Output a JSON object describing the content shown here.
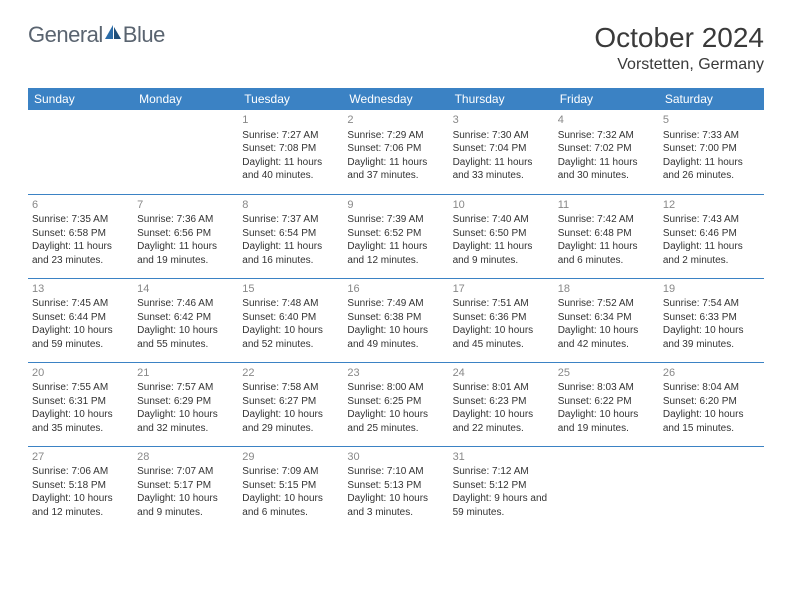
{
  "brand": {
    "part1": "General",
    "part2": "Blue"
  },
  "title": "October 2024",
  "location": "Vorstetten, Germany",
  "colors": {
    "header_bg": "#3b82c4",
    "header_fg": "#ffffff",
    "daynum": "#888888",
    "text": "#333333",
    "logo_gray": "#5a6470",
    "logo_blue": "#2b6ca8"
  },
  "fonts": {
    "title_size": 28,
    "location_size": 16,
    "dayhead_size": 12,
    "cell_size": 10
  },
  "day_headers": [
    "Sunday",
    "Monday",
    "Tuesday",
    "Wednesday",
    "Thursday",
    "Friday",
    "Saturday"
  ],
  "weeks": [
    [
      null,
      null,
      {
        "n": "1",
        "sr": "Sunrise: 7:27 AM",
        "ss": "Sunset: 7:08 PM",
        "dl": "Daylight: 11 hours and 40 minutes."
      },
      {
        "n": "2",
        "sr": "Sunrise: 7:29 AM",
        "ss": "Sunset: 7:06 PM",
        "dl": "Daylight: 11 hours and 37 minutes."
      },
      {
        "n": "3",
        "sr": "Sunrise: 7:30 AM",
        "ss": "Sunset: 7:04 PM",
        "dl": "Daylight: 11 hours and 33 minutes."
      },
      {
        "n": "4",
        "sr": "Sunrise: 7:32 AM",
        "ss": "Sunset: 7:02 PM",
        "dl": "Daylight: 11 hours and 30 minutes."
      },
      {
        "n": "5",
        "sr": "Sunrise: 7:33 AM",
        "ss": "Sunset: 7:00 PM",
        "dl": "Daylight: 11 hours and 26 minutes."
      }
    ],
    [
      {
        "n": "6",
        "sr": "Sunrise: 7:35 AM",
        "ss": "Sunset: 6:58 PM",
        "dl": "Daylight: 11 hours and 23 minutes."
      },
      {
        "n": "7",
        "sr": "Sunrise: 7:36 AM",
        "ss": "Sunset: 6:56 PM",
        "dl": "Daylight: 11 hours and 19 minutes."
      },
      {
        "n": "8",
        "sr": "Sunrise: 7:37 AM",
        "ss": "Sunset: 6:54 PM",
        "dl": "Daylight: 11 hours and 16 minutes."
      },
      {
        "n": "9",
        "sr": "Sunrise: 7:39 AM",
        "ss": "Sunset: 6:52 PM",
        "dl": "Daylight: 11 hours and 12 minutes."
      },
      {
        "n": "10",
        "sr": "Sunrise: 7:40 AM",
        "ss": "Sunset: 6:50 PM",
        "dl": "Daylight: 11 hours and 9 minutes."
      },
      {
        "n": "11",
        "sr": "Sunrise: 7:42 AM",
        "ss": "Sunset: 6:48 PM",
        "dl": "Daylight: 11 hours and 6 minutes."
      },
      {
        "n": "12",
        "sr": "Sunrise: 7:43 AM",
        "ss": "Sunset: 6:46 PM",
        "dl": "Daylight: 11 hours and 2 minutes."
      }
    ],
    [
      {
        "n": "13",
        "sr": "Sunrise: 7:45 AM",
        "ss": "Sunset: 6:44 PM",
        "dl": "Daylight: 10 hours and 59 minutes."
      },
      {
        "n": "14",
        "sr": "Sunrise: 7:46 AM",
        "ss": "Sunset: 6:42 PM",
        "dl": "Daylight: 10 hours and 55 minutes."
      },
      {
        "n": "15",
        "sr": "Sunrise: 7:48 AM",
        "ss": "Sunset: 6:40 PM",
        "dl": "Daylight: 10 hours and 52 minutes."
      },
      {
        "n": "16",
        "sr": "Sunrise: 7:49 AM",
        "ss": "Sunset: 6:38 PM",
        "dl": "Daylight: 10 hours and 49 minutes."
      },
      {
        "n": "17",
        "sr": "Sunrise: 7:51 AM",
        "ss": "Sunset: 6:36 PM",
        "dl": "Daylight: 10 hours and 45 minutes."
      },
      {
        "n": "18",
        "sr": "Sunrise: 7:52 AM",
        "ss": "Sunset: 6:34 PM",
        "dl": "Daylight: 10 hours and 42 minutes."
      },
      {
        "n": "19",
        "sr": "Sunrise: 7:54 AM",
        "ss": "Sunset: 6:33 PM",
        "dl": "Daylight: 10 hours and 39 minutes."
      }
    ],
    [
      {
        "n": "20",
        "sr": "Sunrise: 7:55 AM",
        "ss": "Sunset: 6:31 PM",
        "dl": "Daylight: 10 hours and 35 minutes."
      },
      {
        "n": "21",
        "sr": "Sunrise: 7:57 AM",
        "ss": "Sunset: 6:29 PM",
        "dl": "Daylight: 10 hours and 32 minutes."
      },
      {
        "n": "22",
        "sr": "Sunrise: 7:58 AM",
        "ss": "Sunset: 6:27 PM",
        "dl": "Daylight: 10 hours and 29 minutes."
      },
      {
        "n": "23",
        "sr": "Sunrise: 8:00 AM",
        "ss": "Sunset: 6:25 PM",
        "dl": "Daylight: 10 hours and 25 minutes."
      },
      {
        "n": "24",
        "sr": "Sunrise: 8:01 AM",
        "ss": "Sunset: 6:23 PM",
        "dl": "Daylight: 10 hours and 22 minutes."
      },
      {
        "n": "25",
        "sr": "Sunrise: 8:03 AM",
        "ss": "Sunset: 6:22 PM",
        "dl": "Daylight: 10 hours and 19 minutes."
      },
      {
        "n": "26",
        "sr": "Sunrise: 8:04 AM",
        "ss": "Sunset: 6:20 PM",
        "dl": "Daylight: 10 hours and 15 minutes."
      }
    ],
    [
      {
        "n": "27",
        "sr": "Sunrise: 7:06 AM",
        "ss": "Sunset: 5:18 PM",
        "dl": "Daylight: 10 hours and 12 minutes."
      },
      {
        "n": "28",
        "sr": "Sunrise: 7:07 AM",
        "ss": "Sunset: 5:17 PM",
        "dl": "Daylight: 10 hours and 9 minutes."
      },
      {
        "n": "29",
        "sr": "Sunrise: 7:09 AM",
        "ss": "Sunset: 5:15 PM",
        "dl": "Daylight: 10 hours and 6 minutes."
      },
      {
        "n": "30",
        "sr": "Sunrise: 7:10 AM",
        "ss": "Sunset: 5:13 PM",
        "dl": "Daylight: 10 hours and 3 minutes."
      },
      {
        "n": "31",
        "sr": "Sunrise: 7:12 AM",
        "ss": "Sunset: 5:12 PM",
        "dl": "Daylight: 9 hours and 59 minutes."
      },
      null,
      null
    ]
  ]
}
